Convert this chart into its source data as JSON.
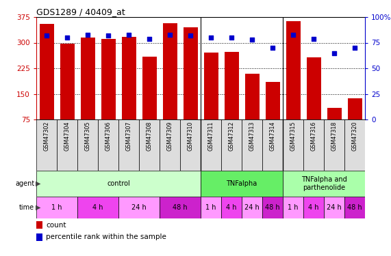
{
  "title": "GDS1289 / 40409_at",
  "samples": [
    "GSM47302",
    "GSM47304",
    "GSM47305",
    "GSM47306",
    "GSM47307",
    "GSM47308",
    "GSM47309",
    "GSM47310",
    "GSM47311",
    "GSM47312",
    "GSM47313",
    "GSM47314",
    "GSM47315",
    "GSM47316",
    "GSM47318",
    "GSM47320"
  ],
  "counts": [
    355,
    298,
    315,
    312,
    318,
    260,
    358,
    345,
    272,
    274,
    210,
    185,
    363,
    258,
    110,
    138
  ],
  "percentiles": [
    82,
    80,
    83,
    82,
    83,
    79,
    83,
    82,
    80,
    80,
    78,
    70,
    83,
    79,
    65,
    70
  ],
  "ylim_left": [
    75,
    375
  ],
  "ylim_right": [
    0,
    100
  ],
  "yticks_left": [
    75,
    150,
    225,
    300,
    375
  ],
  "yticks_right": [
    0,
    25,
    50,
    75,
    100
  ],
  "bar_color": "#cc0000",
  "dot_color": "#0000cc",
  "agent_groups": [
    {
      "label": "control",
      "start": 0,
      "end": 8,
      "color": "#ccffcc"
    },
    {
      "label": "TNFalpha",
      "start": 8,
      "end": 12,
      "color": "#66ee66"
    },
    {
      "label": "TNFalpha and\nparthenolide",
      "start": 12,
      "end": 16,
      "color": "#aaffaa"
    }
  ],
  "time_groups": [
    {
      "label": "1 h",
      "start": 0,
      "end": 2,
      "color": "#ff99ff"
    },
    {
      "label": "4 h",
      "start": 2,
      "end": 4,
      "color": "#ee44ee"
    },
    {
      "label": "24 h",
      "start": 4,
      "end": 6,
      "color": "#ff99ff"
    },
    {
      "label": "48 h",
      "start": 6,
      "end": 8,
      "color": "#cc22cc"
    },
    {
      "label": "1 h",
      "start": 8,
      "end": 9,
      "color": "#ff99ff"
    },
    {
      "label": "4 h",
      "start": 9,
      "end": 10,
      "color": "#ee44ee"
    },
    {
      "label": "24 h",
      "start": 10,
      "end": 11,
      "color": "#ff99ff"
    },
    {
      "label": "48 h",
      "start": 11,
      "end": 12,
      "color": "#cc22cc"
    },
    {
      "label": "1 h",
      "start": 12,
      "end": 13,
      "color": "#ff99ff"
    },
    {
      "label": "4 h",
      "start": 13,
      "end": 14,
      "color": "#ee44ee"
    },
    {
      "label": "24 h",
      "start": 14,
      "end": 15,
      "color": "#ff99ff"
    },
    {
      "label": "48 h",
      "start": 15,
      "end": 16,
      "color": "#cc22cc"
    }
  ],
  "group_boundaries": [
    8,
    12
  ],
  "left_axis_color": "#cc0000",
  "right_axis_color": "#0000cc",
  "xtick_bg": "#dddddd"
}
